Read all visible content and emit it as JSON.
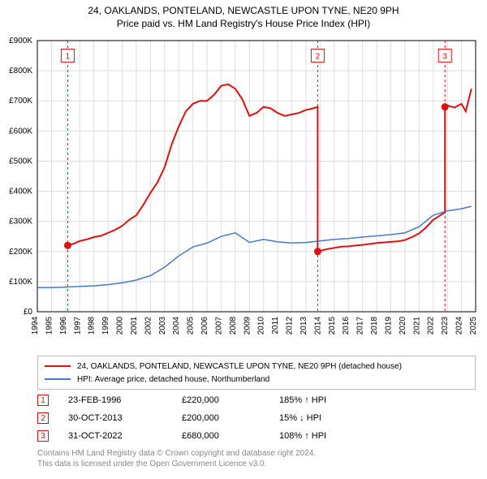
{
  "title": {
    "line1": "24, OAKLANDS, PONTELAND, NEWCASTLE UPON TYNE, NE20 9PH",
    "line2": "Price paid vs. HM Land Registry's House Price Index (HPI)"
  },
  "chart": {
    "type": "line",
    "background_color": "#ffffff",
    "plot_border_color": "#000000",
    "grid_color": "#dddddd",
    "axis_font_size": 10,
    "x": {
      "min": 1994,
      "max": 2025,
      "ticks": [
        1994,
        1995,
        1996,
        1997,
        1998,
        1999,
        2000,
        2001,
        2002,
        2003,
        2004,
        2005,
        2006,
        2007,
        2008,
        2009,
        2010,
        2011,
        2012,
        2013,
        2014,
        2015,
        2016,
        2017,
        2018,
        2019,
        2020,
        2021,
        2022,
        2023,
        2024,
        2025
      ],
      "tick_rotation": -90
    },
    "y": {
      "min": 0,
      "max": 900000,
      "ticks": [
        0,
        100000,
        200000,
        300000,
        400000,
        500000,
        600000,
        700000,
        800000,
        900000
      ],
      "tick_labels": [
        "£0",
        "£100K",
        "£200K",
        "£300K",
        "£400K",
        "£500K",
        "£600K",
        "£700K",
        "£800K",
        "£900K"
      ]
    },
    "series": [
      {
        "id": "property",
        "label": "24, OAKLANDS, PONTELAND, NEWCASTLE UPON TYNE, NE20 9PH (detached house)",
        "color": "#e01010",
        "line_width": 2,
        "points": [
          [
            1996.15,
            220000
          ],
          [
            1996.5,
            225000
          ],
          [
            1997,
            235000
          ],
          [
            1997.5,
            240000
          ],
          [
            1998,
            248000
          ],
          [
            1998.5,
            252000
          ],
          [
            1999,
            262000
          ],
          [
            1999.5,
            272000
          ],
          [
            2000,
            285000
          ],
          [
            2000.5,
            305000
          ],
          [
            2001,
            320000
          ],
          [
            2001.5,
            355000
          ],
          [
            2002,
            395000
          ],
          [
            2002.5,
            430000
          ],
          [
            2003,
            480000
          ],
          [
            2003.5,
            555000
          ],
          [
            2004,
            615000
          ],
          [
            2004.5,
            665000
          ],
          [
            2005,
            690000
          ],
          [
            2005.5,
            700000
          ],
          [
            2006,
            700000
          ],
          [
            2006.5,
            720000
          ],
          [
            2007,
            750000
          ],
          [
            2007.5,
            755000
          ],
          [
            2008,
            740000
          ],
          [
            2008.5,
            705000
          ],
          [
            2009,
            650000
          ],
          [
            2009.5,
            660000
          ],
          [
            2010,
            680000
          ],
          [
            2010.5,
            675000
          ],
          [
            2011,
            660000
          ],
          [
            2011.5,
            650000
          ],
          [
            2012,
            655000
          ],
          [
            2012.5,
            660000
          ],
          [
            2013,
            670000
          ],
          [
            2013.5,
            675000
          ],
          [
            2013.83,
            680000
          ],
          [
            2013.83,
            200000
          ],
          [
            2014,
            202000
          ],
          [
            2014.5,
            208000
          ],
          [
            2015,
            212000
          ],
          [
            2015.5,
            216000
          ],
          [
            2016,
            217000
          ],
          [
            2016.5,
            220000
          ],
          [
            2017,
            222000
          ],
          [
            2017.5,
            225000
          ],
          [
            2018,
            228000
          ],
          [
            2018.5,
            230000
          ],
          [
            2019,
            232000
          ],
          [
            2019.5,
            234000
          ],
          [
            2020,
            238000
          ],
          [
            2020.5,
            248000
          ],
          [
            2021,
            260000
          ],
          [
            2021.5,
            280000
          ],
          [
            2022,
            305000
          ],
          [
            2022.5,
            320000
          ],
          [
            2022.83,
            330000
          ],
          [
            2022.83,
            680000
          ],
          [
            2023,
            685000
          ],
          [
            2023.5,
            678000
          ],
          [
            2024,
            690000
          ],
          [
            2024.3,
            665000
          ],
          [
            2024.7,
            740000
          ]
        ]
      },
      {
        "id": "hpi",
        "label": "HPI: Average price, detached house, Northumberland",
        "color": "#4a78c8",
        "line_width": 1.5,
        "points": [
          [
            1994,
            80000
          ],
          [
            1995,
            80000
          ],
          [
            1996,
            82000
          ],
          [
            1997,
            84000
          ],
          [
            1998,
            86000
          ],
          [
            1999,
            90000
          ],
          [
            2000,
            96000
          ],
          [
            2001,
            105000
          ],
          [
            2002,
            120000
          ],
          [
            2003,
            148000
          ],
          [
            2004,
            185000
          ],
          [
            2005,
            215000
          ],
          [
            2006,
            228000
          ],
          [
            2007,
            250000
          ],
          [
            2008,
            262000
          ],
          [
            2009,
            230000
          ],
          [
            2010,
            240000
          ],
          [
            2011,
            232000
          ],
          [
            2012,
            228000
          ],
          [
            2013,
            230000
          ],
          [
            2014,
            235000
          ],
          [
            2015,
            240000
          ],
          [
            2016,
            243000
          ],
          [
            2017,
            248000
          ],
          [
            2018,
            252000
          ],
          [
            2019,
            256000
          ],
          [
            2020,
            262000
          ],
          [
            2021,
            282000
          ],
          [
            2022,
            320000
          ],
          [
            2023,
            335000
          ],
          [
            2024,
            342000
          ],
          [
            2024.7,
            350000
          ]
        ]
      }
    ],
    "markers": [
      {
        "n": "1",
        "x": 1996.15,
        "y": 220000,
        "color": "#e01010",
        "label_y": 850000
      },
      {
        "n": "2",
        "x": 2013.83,
        "y": 200000,
        "color": "#e01010",
        "label_y": 850000
      },
      {
        "n": "3",
        "x": 2022.83,
        "y": 680000,
        "color": "#e01010",
        "label_y": 850000
      }
    ]
  },
  "legend": {
    "border_color": "#bbbbbb",
    "items": [
      {
        "label": "24, OAKLANDS, PONTELAND, NEWCASTLE UPON TYNE, NE20 9PH (detached house)",
        "color": "#e01010"
      },
      {
        "label": "HPI: Average price, detached house, Northumberland",
        "color": "#4a78c8"
      }
    ]
  },
  "transactions": [
    {
      "n": "1",
      "date": "23-FEB-1996",
      "price": "£220,000",
      "delta": "185% ↑ HPI",
      "color": "#e01010"
    },
    {
      "n": "2",
      "date": "30-OCT-2013",
      "price": "£200,000",
      "delta": "15% ↓ HPI",
      "color": "#e01010"
    },
    {
      "n": "3",
      "date": "31-OCT-2022",
      "price": "£680,000",
      "delta": "108% ↑ HPI",
      "color": "#e01010"
    }
  ],
  "attribution": {
    "line1": "Contains HM Land Registry data © Crown copyright and database right 2024.",
    "line2": "This data is licensed under the Open Government Licence v3.0."
  }
}
